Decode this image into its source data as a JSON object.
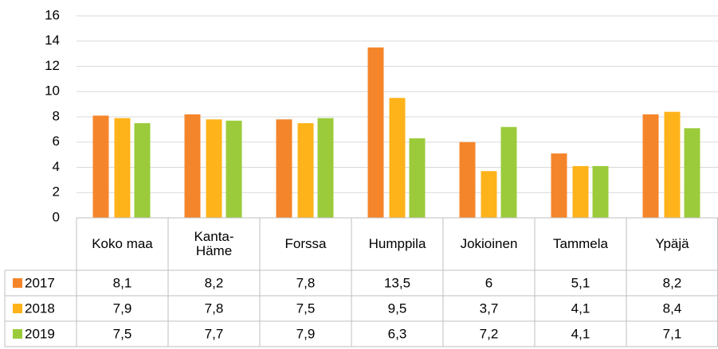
{
  "chart_data": {
    "type": "bar",
    "categories": [
      "Koko maa",
      "Kanta-Häme",
      "Forssa",
      "Humppila",
      "Jokioinen",
      "Tammela",
      "Ypäjä"
    ],
    "series": [
      {
        "name": "2017",
        "color": "#f5852a",
        "values": [
          8.1,
          8.2,
          7.8,
          13.5,
          6,
          5.1,
          8.2
        ],
        "value_labels": [
          "8,1",
          "8,2",
          "7,8",
          "13,5",
          "6",
          "5,1",
          "8,2"
        ]
      },
      {
        "name": "2018",
        "color": "#ffb31a",
        "values": [
          7.9,
          7.8,
          7.5,
          9.5,
          3.7,
          4.1,
          8.4
        ],
        "value_labels": [
          "7,9",
          "7,8",
          "7,5",
          "9,5",
          "3,7",
          "4,1",
          "8,4"
        ]
      },
      {
        "name": "2019",
        "color": "#9bcb3b",
        "values": [
          7.5,
          7.7,
          7.9,
          6.3,
          7.2,
          4.1,
          7.1
        ],
        "value_labels": [
          "7,5",
          "7,7",
          "7,9",
          "6,3",
          "7,2",
          "4,1",
          "7,1"
        ]
      }
    ],
    "ylim": [
      0,
      16
    ],
    "yticks": [
      0,
      2,
      4,
      6,
      8,
      10,
      12,
      14,
      16
    ],
    "grid": true,
    "data_table": true
  }
}
